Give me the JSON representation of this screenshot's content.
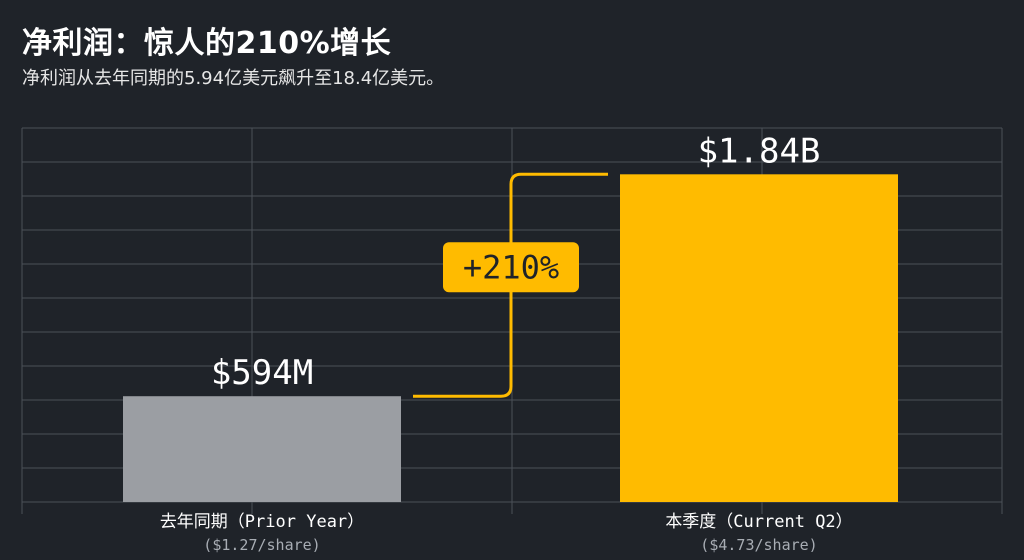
{
  "header": {
    "title": "净利润：惊人的210%增长",
    "subtitle": "净利润从去年同期的5.94亿美元飙升至18.4亿美元。"
  },
  "colors": {
    "background": "#1f2329",
    "prior_bar": "#9b9ea3",
    "current_bar": "#ffbb00",
    "connector": "#ffbb00",
    "grid": "#4b5058"
  },
  "chart_data": {
    "type": "bar",
    "categories": [
      "去年同期（Prior Year）",
      "本季度（Current Q2）"
    ],
    "category_sublabels": [
      "($1.27/share)",
      "($4.73/share)"
    ],
    "values": [
      594,
      1840
    ],
    "value_labels": [
      "$594M",
      "$1.84B"
    ],
    "unit": "USD millions",
    "ylim": [
      0,
      2100
    ],
    "grid": true,
    "annotation": "+210%"
  }
}
